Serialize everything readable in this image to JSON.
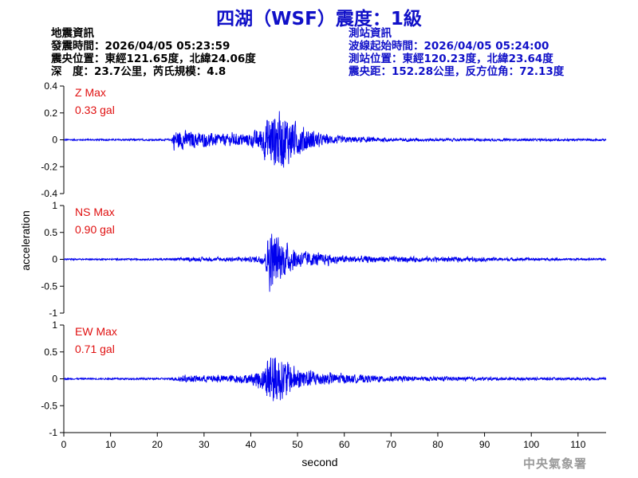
{
  "title": "四湖（WSF）震度：1級",
  "quake_info": {
    "heading": "地震資訊",
    "time": "發震時間：2026/04/05 05:23:59",
    "location": "震央位置：東經121.65度，北緯24.06度",
    "depth": "深　度：23.7公里，芮氏規模：4.8"
  },
  "station_info": {
    "heading": "測站資訊",
    "wave_start": "波線起始時間：2026/04/05 05:24:00",
    "location": "測站位置：東經120.23度，北緯23.64度",
    "distance": "震央距：152.28公里，反方位角：72.13度"
  },
  "watermark": "中央氣象署",
  "colors": {
    "trace": "#0000ee",
    "max_label": "#e01010",
    "title": "#1010c8"
  },
  "chart_data": {
    "type": "line",
    "xlabel": "second",
    "ylabel": "acceleration",
    "xlim": [
      0,
      116
    ],
    "xticks": [
      0,
      10,
      20,
      30,
      40,
      50,
      60,
      70,
      80,
      90,
      100,
      110
    ],
    "panels": [
      {
        "component": "Z",
        "max_label": "Z Max",
        "max_value": "0.33 gal",
        "ylim": [
          -0.4,
          0.4
        ],
        "yticks": [
          -0.4,
          -0.2,
          0,
          0.2,
          0.4
        ],
        "ytick_labels": [
          "-0.4",
          "-0.2",
          "0",
          "0.2",
          "0.4"
        ],
        "envelope": [
          [
            0,
            0.006
          ],
          [
            23,
            0.008
          ],
          [
            23.5,
            0.09
          ],
          [
            26,
            0.08
          ],
          [
            30,
            0.06
          ],
          [
            35,
            0.05
          ],
          [
            40,
            0.06
          ],
          [
            42,
            0.1
          ],
          [
            43.5,
            0.2
          ],
          [
            45,
            0.26
          ],
          [
            47,
            0.24
          ],
          [
            50,
            0.14
          ],
          [
            55,
            0.05
          ],
          [
            60,
            0.03
          ],
          [
            70,
            0.015
          ],
          [
            85,
            0.011
          ],
          [
            116,
            0.009
          ]
        ]
      },
      {
        "component": "NS",
        "max_label": "NS Max",
        "max_value": "0.90 gal",
        "ylim": [
          -1,
          1
        ],
        "yticks": [
          -1,
          -0.5,
          0,
          0.5,
          1
        ],
        "ytick_labels": [
          "-1",
          "-0.5",
          "0",
          "0.5",
          "1"
        ],
        "envelope": [
          [
            0,
            0.015
          ],
          [
            23,
            0.02
          ],
          [
            25,
            0.04
          ],
          [
            35,
            0.045
          ],
          [
            40,
            0.05
          ],
          [
            43,
            0.12
          ],
          [
            44,
            0.7
          ],
          [
            45,
            0.55
          ],
          [
            46.5,
            0.45
          ],
          [
            48,
            0.3
          ],
          [
            50,
            0.2
          ],
          [
            55,
            0.12
          ],
          [
            60,
            0.08
          ],
          [
            70,
            0.06
          ],
          [
            85,
            0.05
          ],
          [
            100,
            0.03
          ],
          [
            116,
            0.02
          ]
        ]
      },
      {
        "component": "EW",
        "max_label": "EW Max",
        "max_value": "0.71 gal",
        "ylim": [
          -1,
          1
        ],
        "yticks": [
          -1,
          -0.5,
          0,
          0.5,
          1
        ],
        "ytick_labels": [
          "-1",
          "-0.5",
          "0",
          "0.5",
          "1"
        ],
        "envelope": [
          [
            0,
            0.015
          ],
          [
            23,
            0.02
          ],
          [
            25,
            0.07
          ],
          [
            35,
            0.08
          ],
          [
            40,
            0.1
          ],
          [
            43,
            0.3
          ],
          [
            44,
            0.62
          ],
          [
            46,
            0.5
          ],
          [
            48,
            0.35
          ],
          [
            50,
            0.25
          ],
          [
            55,
            0.15
          ],
          [
            60,
            0.1
          ],
          [
            70,
            0.06
          ],
          [
            85,
            0.04
          ],
          [
            100,
            0.03
          ],
          [
            116,
            0.025
          ]
        ]
      }
    ]
  }
}
